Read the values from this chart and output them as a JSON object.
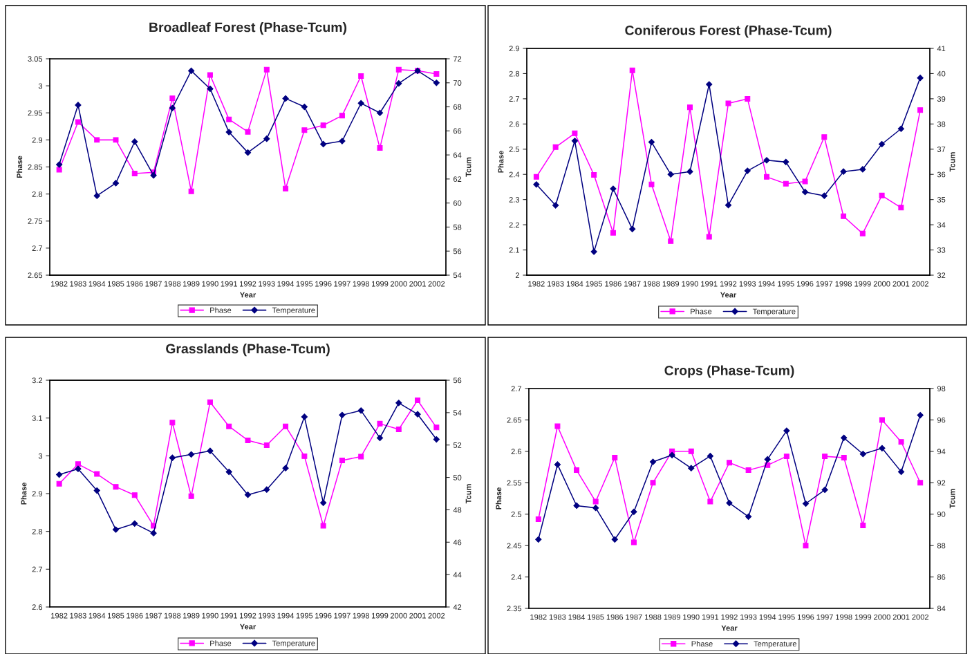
{
  "chart_data": [
    {
      "type": "line",
      "title": "Broadleaf Forest (Phase-Tcum)",
      "xlabel": "Year",
      "ylabel": "Phase",
      "y2label": "Tcum",
      "categories": [
        "1982",
        "1983",
        "1984",
        "1985",
        "1986",
        "1987",
        "1988",
        "1989",
        "1990",
        "1991",
        "1992",
        "1993",
        "1994",
        "1995",
        "1996",
        "1997",
        "1998",
        "1999",
        "2000",
        "2001",
        "2002"
      ],
      "ylim": [
        2.65,
        3.05
      ],
      "yticks": [
        2.65,
        2.7,
        2.75,
        2.8,
        2.85,
        2.9,
        2.95,
        3,
        3.05
      ],
      "y2lim": [
        54,
        72
      ],
      "y2ticks": [
        54,
        56,
        58,
        60,
        62,
        64,
        66,
        68,
        70,
        72
      ],
      "grid": false,
      "legend": "bottom",
      "series": [
        {
          "name": "Phase",
          "color": "#ff00ff",
          "marker": "square",
          "values": [
            2.845,
            2.933,
            2.9,
            2.9,
            2.838,
            2.84,
            2.977,
            2.805,
            3.02,
            2.938,
            2.915,
            3.03,
            2.81,
            2.918,
            2.927,
            2.945,
            3.018,
            2.885,
            3.03,
            3.028,
            3.022
          ]
        },
        {
          "name": "Temperature",
          "color": "#000080",
          "marker": "diamond",
          "axis": "y2",
          "values": [
            63.2,
            68.15,
            60.6,
            61.65,
            65.1,
            62.3,
            67.9,
            71.0,
            69.5,
            65.9,
            64.2,
            65.35,
            68.7,
            68.0,
            64.9,
            65.15,
            68.3,
            67.5,
            69.95,
            71.0,
            70.0
          ]
        }
      ]
    },
    {
      "type": "line",
      "title": "Coniferous Forest (Phase-Tcum)",
      "xlabel": "Year",
      "ylabel": "Phase",
      "y2label": "Tcum",
      "categories": [
        "1982",
        "1983",
        "1984",
        "1985",
        "1986",
        "1987",
        "1988",
        "1989",
        "1990",
        "1991",
        "1992",
        "1993",
        "1994",
        "1995",
        "1996",
        "1997",
        "1998",
        "1999",
        "2000",
        "2001",
        "2002"
      ],
      "ylim": [
        2,
        2.9
      ],
      "yticks": [
        2,
        2.1,
        2.2,
        2.3,
        2.4,
        2.5,
        2.6,
        2.7,
        2.8,
        2.9
      ],
      "y2lim": [
        32,
        41
      ],
      "y2ticks": [
        32,
        33,
        34,
        35,
        36,
        37,
        38,
        39,
        40,
        41
      ],
      "grid": false,
      "legend": "bottom",
      "series": [
        {
          "name": "Phase",
          "color": "#ff00ff",
          "marker": "square",
          "values": [
            2.39,
            2.508,
            2.563,
            2.398,
            2.168,
            2.813,
            2.36,
            2.135,
            2.666,
            2.152,
            2.682,
            2.7,
            2.39,
            2.363,
            2.372,
            2.548,
            2.234,
            2.165,
            2.316,
            2.268,
            2.655
          ]
        },
        {
          "name": "Temperature",
          "color": "#000080",
          "marker": "diamond",
          "axis": "y2",
          "values": [
            35.6,
            34.77,
            37.33,
            32.93,
            35.43,
            33.83,
            37.28,
            36.0,
            36.11,
            39.57,
            34.78,
            36.14,
            36.56,
            36.49,
            35.3,
            35.15,
            36.11,
            36.2,
            37.2,
            37.81,
            39.83
          ]
        }
      ]
    },
    {
      "type": "line",
      "title": "Grasslands (Phase-Tcum)",
      "xlabel": "Year",
      "ylabel": "Phase",
      "y2label": "Tcum",
      "categories": [
        "1982",
        "1983",
        "1984",
        "1985",
        "1986",
        "1987",
        "1988",
        "1989",
        "1990",
        "1991",
        "1992",
        "1993",
        "1994",
        "1995",
        "1996",
        "1997",
        "1998",
        "1999",
        "2000",
        "2001",
        "2002"
      ],
      "ylim": [
        2.6,
        3.2
      ],
      "yticks": [
        2.6,
        2.7,
        2.8,
        2.9,
        3,
        3.1,
        3.2
      ],
      "y2lim": [
        42,
        56
      ],
      "y2ticks": [
        42,
        44,
        46,
        48,
        50,
        52,
        54,
        56
      ],
      "grid": false,
      "legend": "bottom",
      "series": [
        {
          "name": "Phase",
          "color": "#ff00ff",
          "marker": "square",
          "values": [
            2.926,
            2.978,
            2.952,
            2.918,
            2.896,
            2.815,
            3.088,
            2.893,
            3.142,
            3.078,
            3.041,
            3.028,
            3.078,
            2.999,
            2.815,
            2.988,
            2.998,
            3.085,
            3.07,
            3.147,
            3.075
          ]
        },
        {
          "name": "Temperature",
          "color": "#000080",
          "marker": "diamond",
          "axis": "y2",
          "values": [
            50.17,
            50.53,
            49.19,
            46.78,
            47.15,
            46.56,
            51.21,
            51.42,
            51.64,
            50.34,
            48.93,
            49.25,
            50.57,
            53.74,
            48.43,
            53.85,
            54.13,
            52.44,
            54.6,
            53.9,
            52.35
          ]
        }
      ]
    },
    {
      "type": "line",
      "title": "Crops (Phase-Tcum)",
      "xlabel": "Year",
      "ylabel": "Phase",
      "y2label": "Tcum",
      "categories": [
        "1982",
        "1983",
        "1984",
        "1985",
        "1986",
        "1987",
        "1988",
        "1989",
        "1990",
        "1991",
        "1992",
        "1993",
        "1994",
        "1995",
        "1996",
        "1997",
        "1998",
        "1999",
        "2000",
        "2001",
        "2002"
      ],
      "ylim": [
        2.35,
        2.7
      ],
      "yticks": [
        2.35,
        2.4,
        2.45,
        2.5,
        2.55,
        2.6,
        2.65,
        2.7
      ],
      "y2lim": [
        84,
        98
      ],
      "y2ticks": [
        84,
        86,
        88,
        90,
        92,
        94,
        96,
        98
      ],
      "grid": false,
      "legend": "bottom",
      "series": [
        {
          "name": "Phase",
          "color": "#ff00ff",
          "marker": "square",
          "values": [
            2.492,
            2.64,
            2.57,
            2.52,
            2.59,
            2.455,
            2.55,
            2.6,
            2.6,
            2.52,
            2.582,
            2.57,
            2.578,
            2.592,
            2.45,
            2.592,
            2.59,
            2.482,
            2.65,
            2.615,
            2.55
          ]
        },
        {
          "name": "Temperature",
          "color": "#000080",
          "marker": "diamond",
          "axis": "y2",
          "values": [
            88.39,
            93.16,
            90.54,
            90.4,
            88.39,
            90.15,
            93.33,
            93.76,
            92.93,
            93.7,
            90.71,
            89.84,
            93.49,
            95.31,
            90.67,
            91.55,
            94.86,
            93.83,
            94.2,
            92.7,
            96.3
          ]
        }
      ]
    }
  ]
}
